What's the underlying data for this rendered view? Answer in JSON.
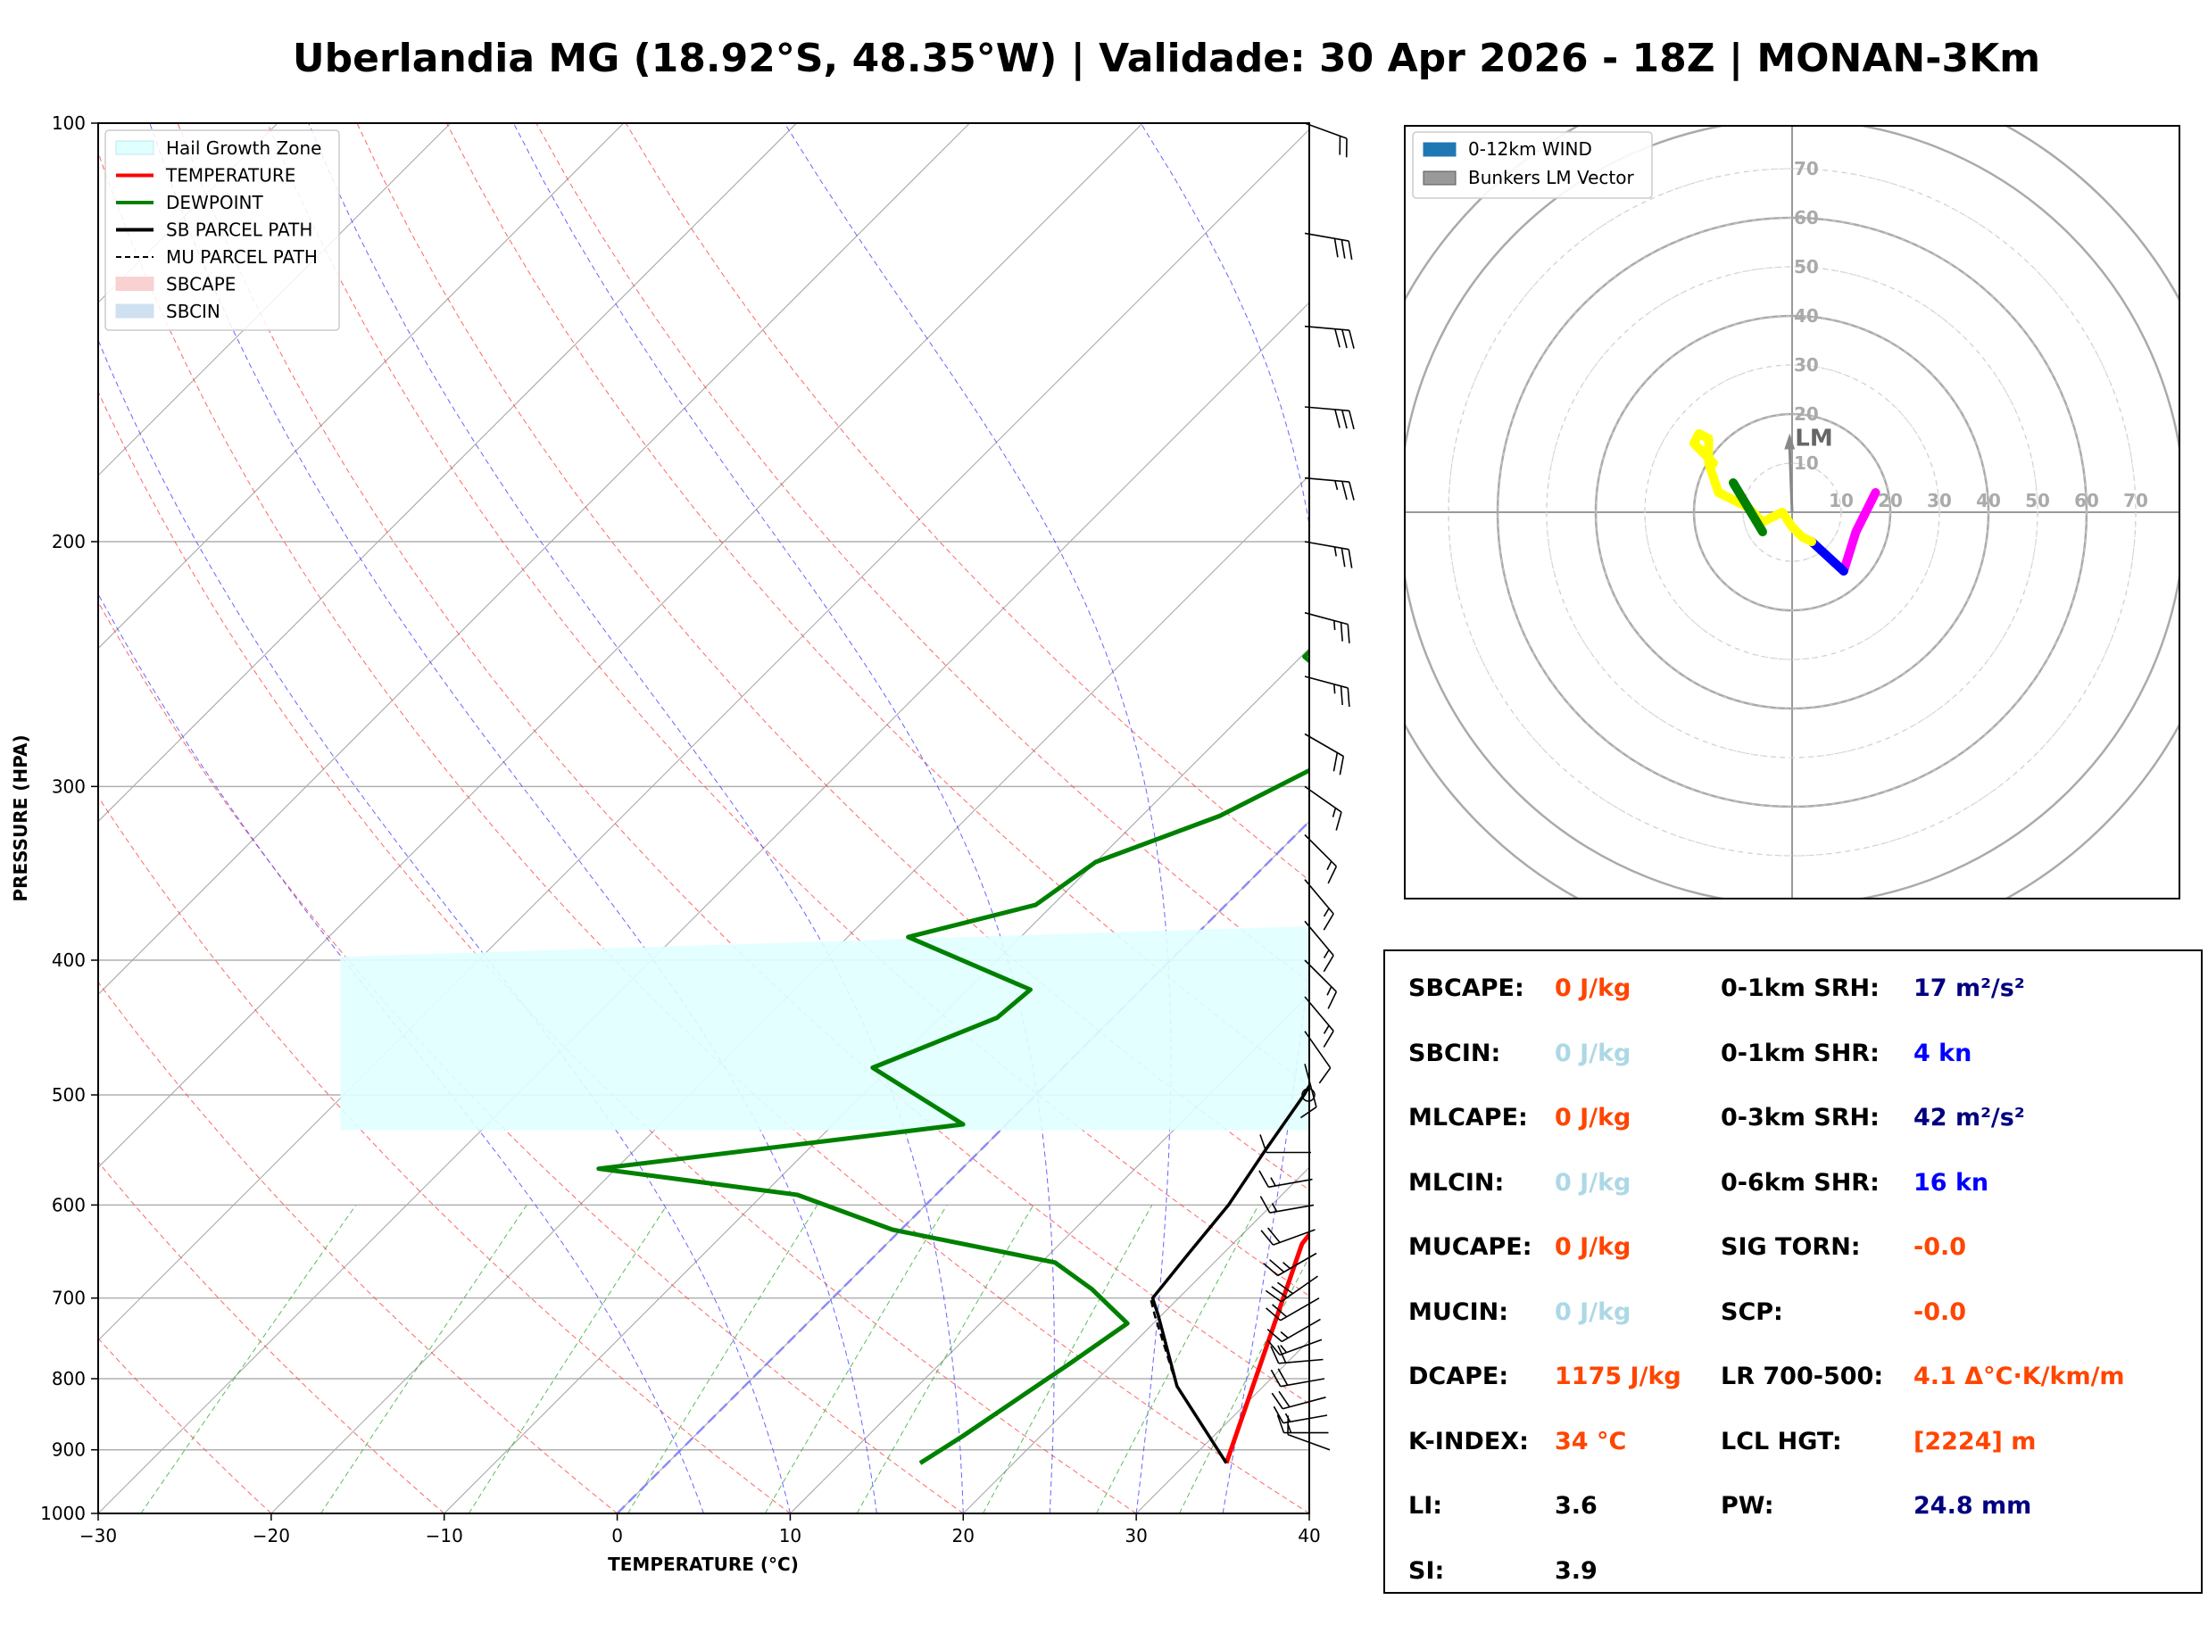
{
  "title": "Uberlandia MG (18.92°S, 48.35°W) | Validade: 30 Apr 2026 - 18Z | MONAN-3Km",
  "chart_data": [
    {
      "type": "line",
      "subtype": "skew-t log-p sounding",
      "xlabel": "TEMPERATURE (°C)",
      "ylabel": "PRESSURE (HPA)",
      "xlim": [
        -30,
        40
      ],
      "ylim": [
        1000,
        100
      ],
      "y_scale": "log",
      "x_ticks": [
        -30,
        -20,
        -10,
        0,
        10,
        20,
        30,
        40
      ],
      "x_tick_labels": [
        "−30",
        "−20",
        "−10",
        "0",
        "10",
        "20",
        "30",
        "40"
      ],
      "y_ticks": [
        1000,
        900,
        800,
        700,
        600,
        500,
        400,
        300,
        200,
        100
      ],
      "legend": {
        "placement": "top-left",
        "entries": [
          {
            "label": "Hail Growth Zone",
            "color": "#e0ffff",
            "kind": "patch"
          },
          {
            "label": "TEMPERATURE",
            "color": "#ff0000",
            "kind": "line"
          },
          {
            "label": "DEWPOINT",
            "color": "#008000",
            "kind": "line"
          },
          {
            "label": "SB PARCEL PATH",
            "color": "#000000",
            "kind": "line"
          },
          {
            "label": "MU PARCEL PATH",
            "color": "#000000",
            "kind": "dashed"
          },
          {
            "label": "SBCAPE",
            "color": "#f9d1d1",
            "kind": "patch"
          },
          {
            "label": "SBCIN",
            "color": "#cfe0f0",
            "kind": "patch"
          }
        ]
      },
      "hail_growth_zone": {
        "p_bottom": 530,
        "p_top": 375,
        "t_left_bottom": -16,
        "t_left_top": -16,
        "t_right_bottom": 21.5,
        "t_right_top": 15
      },
      "series": [
        {
          "name": "TEMPERATURE",
          "color": "#ff0000",
          "points": [
            [
              32.3,
              920
            ],
            [
              24.0,
              640
            ],
            [
              23.5,
              600
            ],
            [
              22.6,
              575
            ],
            [
              21.5,
              550
            ],
            [
              19.3,
              500
            ],
            [
              17.5,
              465
            ],
            [
              15.5,
              430
            ],
            [
              14.0,
              400
            ],
            [
              11.5,
              360
            ],
            [
              8.0,
              320
            ],
            [
              5.3,
              290
            ],
            [
              1.0,
              250
            ],
            [
              -1.7,
              225
            ],
            [
              -4.3,
              200
            ],
            [
              -5.3,
              185
            ],
            [
              -6.8,
              170
            ],
            [
              -7.8,
              155
            ],
            [
              -8.5,
              140
            ],
            [
              -7.0,
              125
            ],
            [
              -3.0,
              110
            ],
            [
              -0.3,
              100
            ]
          ]
        },
        {
          "name": "DEWPOINT",
          "color": "#008000",
          "points": [
            [
              14.6,
              920
            ],
            [
              15.5,
              880
            ],
            [
              17.5,
              780
            ],
            [
              18.5,
              730
            ],
            [
              14.5,
              690
            ],
            [
              10.8,
              660
            ],
            [
              -0.5,
              625
            ],
            [
              -8.0,
              590
            ],
            [
              -21.0,
              565
            ],
            [
              -2.5,
              525
            ],
            [
              -11.0,
              478
            ],
            [
              -6.7,
              440
            ],
            [
              -6.4,
              420
            ],
            [
              -16.5,
              385
            ],
            [
              -11.0,
              365
            ],
            [
              -10.0,
              340
            ],
            [
              -5.5,
              315
            ],
            [
              -2.7,
              290
            ],
            [
              -2.8,
              265
            ],
            [
              -9.8,
              242
            ],
            [
              -9.8,
              225
            ],
            [
              -11.0,
              200
            ],
            [
              -9.8,
              180
            ],
            [
              -9.0,
              165
            ],
            [
              -8.0,
              150
            ],
            [
              -7.0,
              135
            ],
            [
              -6.0,
              115
            ],
            [
              -5.7,
              100
            ]
          ]
        },
        {
          "name": "SB PARCEL PATH",
          "color": "#000000",
          "points": [
            [
              32.3,
              920
            ],
            [
              25.0,
              810
            ],
            [
              19.8,
              720
            ],
            [
              18.5,
              700
            ],
            [
              18.0,
              650
            ],
            [
              17.5,
              600
            ],
            [
              16.5,
              550
            ],
            [
              15.5,
              500
            ],
            [
              14.0,
              450
            ],
            [
              12.0,
              400
            ],
            [
              9.0,
              350
            ],
            [
              5.5,
              300
            ],
            [
              1.5,
              250
            ],
            [
              -2.8,
              200
            ],
            [
              -5.3,
              175
            ],
            [
              -7.6,
              150
            ],
            [
              -9.6,
              130
            ],
            [
              -11.0,
              115
            ],
            [
              -12.1,
              100
            ]
          ]
        },
        {
          "name": "MU PARCEL PATH",
          "color": "#000000",
          "dashed": true,
          "points": [
            [
              32.3,
              920
            ],
            [
              25.0,
              810
            ],
            [
              19.6,
              720
            ],
            [
              18.5,
              702
            ]
          ]
        }
      ],
      "isotherms_deg": [
        -100,
        -90,
        -80,
        -70,
        -60,
        -50,
        -40,
        -30,
        -20,
        -10,
        0,
        10,
        20,
        30,
        40,
        50
      ],
      "dry_adiabats_theta_c": [
        -30,
        -20,
        -10,
        0,
        10,
        20,
        30,
        40,
        50,
        60,
        70,
        80,
        90,
        100
      ],
      "moist_adiabats_c": [
        5,
        10,
        15,
        20,
        25,
        30,
        35
      ],
      "mixing_ratio_lines": [
        0.4,
        1,
        2,
        4,
        7,
        10,
        16,
        24,
        32
      ],
      "freezing_level_line": {
        "color": "#8080ff",
        "dashed": true
      },
      "wind_barbs": {
        "pressures": [
          100,
          120,
          140,
          160,
          180,
          200,
          225,
          250,
          275,
          300,
          325,
          350,
          375,
          400,
          425,
          450,
          475,
          500,
          550,
          575,
          600,
          625,
          650,
          675,
          700,
          725,
          750,
          775,
          800,
          825,
          850,
          875,
          900
        ],
        "speeds_kn": [
          20,
          30,
          30,
          30,
          25,
          25,
          25,
          25,
          20,
          15,
          15,
          15,
          15,
          15,
          15,
          10,
          10,
          0,
          10,
          15,
          15,
          20,
          25,
          30,
          20,
          15,
          15,
          20,
          20,
          20,
          15,
          15,
          10
        ],
        "directions_deg": [
          290,
          280,
          275,
          275,
          275,
          280,
          285,
          285,
          300,
          305,
          315,
          320,
          320,
          315,
          320,
          325,
          345,
          0,
          90,
          80,
          80,
          70,
          60,
          55,
          60,
          60,
          70,
          85,
          80,
          75,
          80,
          90,
          110
        ]
      }
    },
    {
      "type": "line",
      "subtype": "hodograph",
      "rings": [
        10,
        20,
        30,
        40,
        50,
        60,
        70
      ],
      "ring_labels": [
        "10",
        "20",
        "30",
        "40",
        "50",
        "60",
        "70"
      ],
      "legend": {
        "placement": "top-left",
        "entries": [
          {
            "label": "0-12km WIND",
            "color": "#1f77b4"
          },
          {
            "label": "Bunkers LM Vector",
            "color": "#999999"
          }
        ]
      },
      "lm_label": "LM",
      "lm_vector": [
        -0.5,
        15
      ],
      "segments": [
        {
          "color": "#ff00ff",
          "points": [
            [
              10.5,
              -12
            ],
            [
              13,
              -4
            ],
            [
              17,
              4
            ]
          ]
        },
        {
          "color": "#0000ff",
          "points": [
            [
              4,
              -6
            ],
            [
              10.5,
              -12
            ]
          ]
        },
        {
          "color": "#ffff00",
          "points": [
            [
              0,
              -3
            ],
            [
              2,
              -5
            ],
            [
              4,
              -6
            ]
          ]
        },
        {
          "color": "#ffff00",
          "points": [
            [
              0,
              -3
            ],
            [
              -2,
              0
            ],
            [
              -4,
              -1
            ],
            [
              -6,
              -2
            ],
            [
              -9,
              1
            ],
            [
              -15,
              4
            ],
            [
              -17,
              10
            ],
            [
              -17,
              15
            ],
            [
              -19,
              16
            ],
            [
              -20,
              14
            ],
            [
              -18,
              12
            ],
            [
              -16,
              10
            ]
          ]
        },
        {
          "color": "#008000",
          "points": [
            [
              -6,
              -4
            ],
            [
              -9,
              1
            ],
            [
              -12,
              6
            ]
          ]
        }
      ]
    }
  ],
  "stats": {
    "left": [
      {
        "label": "SBCAPE:",
        "value": "0 J/kg",
        "color": "#ff4500"
      },
      {
        "label": "SBCIN:",
        "value": "0 J/kg",
        "color": "#add8e6"
      },
      {
        "label": "MLCAPE:",
        "value": "0 J/kg",
        "color": "#ff4500"
      },
      {
        "label": "MLCIN:",
        "value": "0 J/kg",
        "color": "#add8e6"
      },
      {
        "label": "MUCAPE:",
        "value": "0 J/kg",
        "color": "#ff4500"
      },
      {
        "label": "MUCIN:",
        "value": "0 J/kg",
        "color": "#add8e6"
      },
      {
        "label": "DCAPE:",
        "value": "1175 J/kg",
        "color": "#ff4500"
      },
      {
        "label": "K-INDEX:",
        "value": "34 °C",
        "color": "#ff4500"
      },
      {
        "label": "LI:",
        "value": "3.6",
        "color": "#000000"
      },
      {
        "label": "SI:",
        "value": "3.9",
        "color": "#000000"
      }
    ],
    "right": [
      {
        "label": "0-1km SRH:",
        "value": "17 m²/s²",
        "color": "#000080"
      },
      {
        "label": "0-1km SHR:",
        "value": "4 kn",
        "color": "#0000ff"
      },
      {
        "label": "0-3km SRH:",
        "value": "42 m²/s²",
        "color": "#000080"
      },
      {
        "label": "0-6km SHR:",
        "value": "16 kn",
        "color": "#0000ff"
      },
      {
        "label": "SIG TORN:",
        "value": "-0.0",
        "color": "#ff4500"
      },
      {
        "label": "SCP:",
        "value": "-0.0",
        "color": "#ff4500"
      },
      {
        "label": "LR 700-500:",
        "value": "4.1 Δ°C·K/km/m",
        "color": "#ff4500"
      },
      {
        "label": "LCL HGT:",
        "value": "[2224] m",
        "color": "#ff4500"
      },
      {
        "label": "PW:",
        "value": "24.8 mm",
        "color": "#000080"
      }
    ]
  }
}
